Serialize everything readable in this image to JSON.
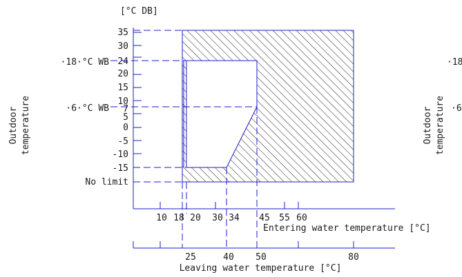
{
  "top_unit_label": "[°C DB]",
  "y_axis_title": [
    "Outdoor",
    "temperature"
  ],
  "y_ticks": [
    "35",
    "30",
    "24",
    "20",
    "15",
    "10",
    "7",
    "5",
    "0",
    "-5",
    "-10",
    "-15"
  ],
  "wb_labels": {
    "wb18": "·18·°C WB",
    "wb6": "·6·°C WB"
  },
  "no_limit_label": "No limit",
  "entering_axis": {
    "ticks": [
      "10",
      "18",
      "20",
      "30",
      "34",
      "45",
      "55",
      "60"
    ],
    "title": "Entering water temperature [°C]"
  },
  "leaving_axis": {
    "ticks": [
      "25",
      "40",
      "50",
      "80"
    ],
    "title": "Leaving water temperature [°C]"
  },
  "right_clipped_copy": {
    "title": [
      "Outdoor",
      "temperature"
    ],
    "wb18": "·18",
    "wb6": "·6"
  }
}
